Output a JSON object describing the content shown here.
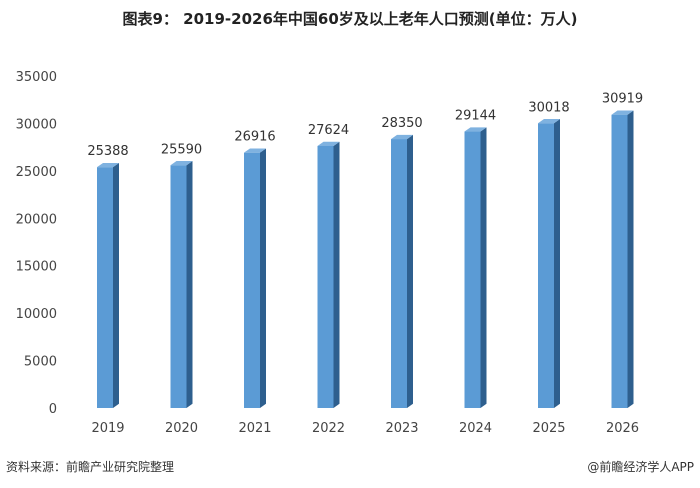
{
  "title": "图表9： 2019-2026年中国60岁及以上老年人口预测(单位：万人)",
  "source": "资料来源：前瞻产业研究院整理",
  "credit": "@前瞻经济学人APP",
  "colors": {
    "bar_front": "#5b9bd5",
    "bar_side": "#2e5f8e",
    "bar_top": "#7fb2e0"
  },
  "chart_data": {
    "type": "bar",
    "title": "2019-2026年中国60岁及以上老年人口预测(单位：万人)",
    "categories": [
      "2019",
      "2020",
      "2021",
      "2022",
      "2023",
      "2024",
      "2025",
      "2026"
    ],
    "values": [
      25388,
      25590,
      26916,
      27624,
      28350,
      29144,
      30018,
      30919
    ],
    "ylim": [
      0,
      35000
    ],
    "yticks": [
      0,
      5000,
      10000,
      15000,
      20000,
      25000,
      30000,
      35000
    ],
    "grid": false,
    "legend": "none",
    "data_labels": true
  }
}
